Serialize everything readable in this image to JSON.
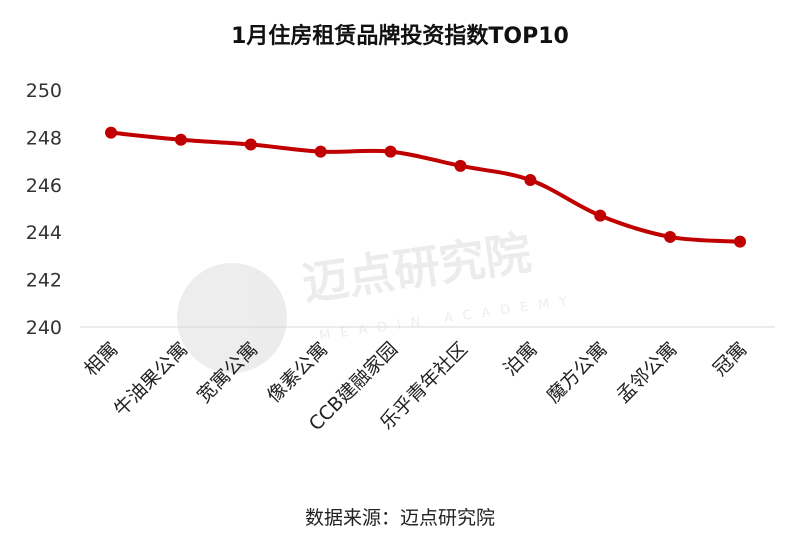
{
  "chart_data": {
    "type": "line",
    "title": "1月住房租赁品牌投资指数TOP10",
    "categories": [
      "相寓",
      "牛油果公寓",
      "宽寓公寓",
      "像素公寓",
      "CCB建融家园",
      "乐乎青年社区",
      "泊寓",
      "魔方公寓",
      "孟邻公寓",
      "冠寓"
    ],
    "series": [
      {
        "values": [
          248.2,
          247.9,
          247.7,
          247.4,
          247.4,
          246.8,
          246.2,
          244.7,
          243.8,
          243.6
        ]
      }
    ],
    "ylim": [
      240,
      250
    ],
    "yticks": [
      240,
      242,
      244,
      246,
      248,
      250
    ],
    "grid": false,
    "line_color": "#c00000",
    "source": "数据来源：迈点研究院"
  },
  "watermark": {
    "name": "迈点研究院",
    "sub": "MEADIN ACADEMY"
  }
}
